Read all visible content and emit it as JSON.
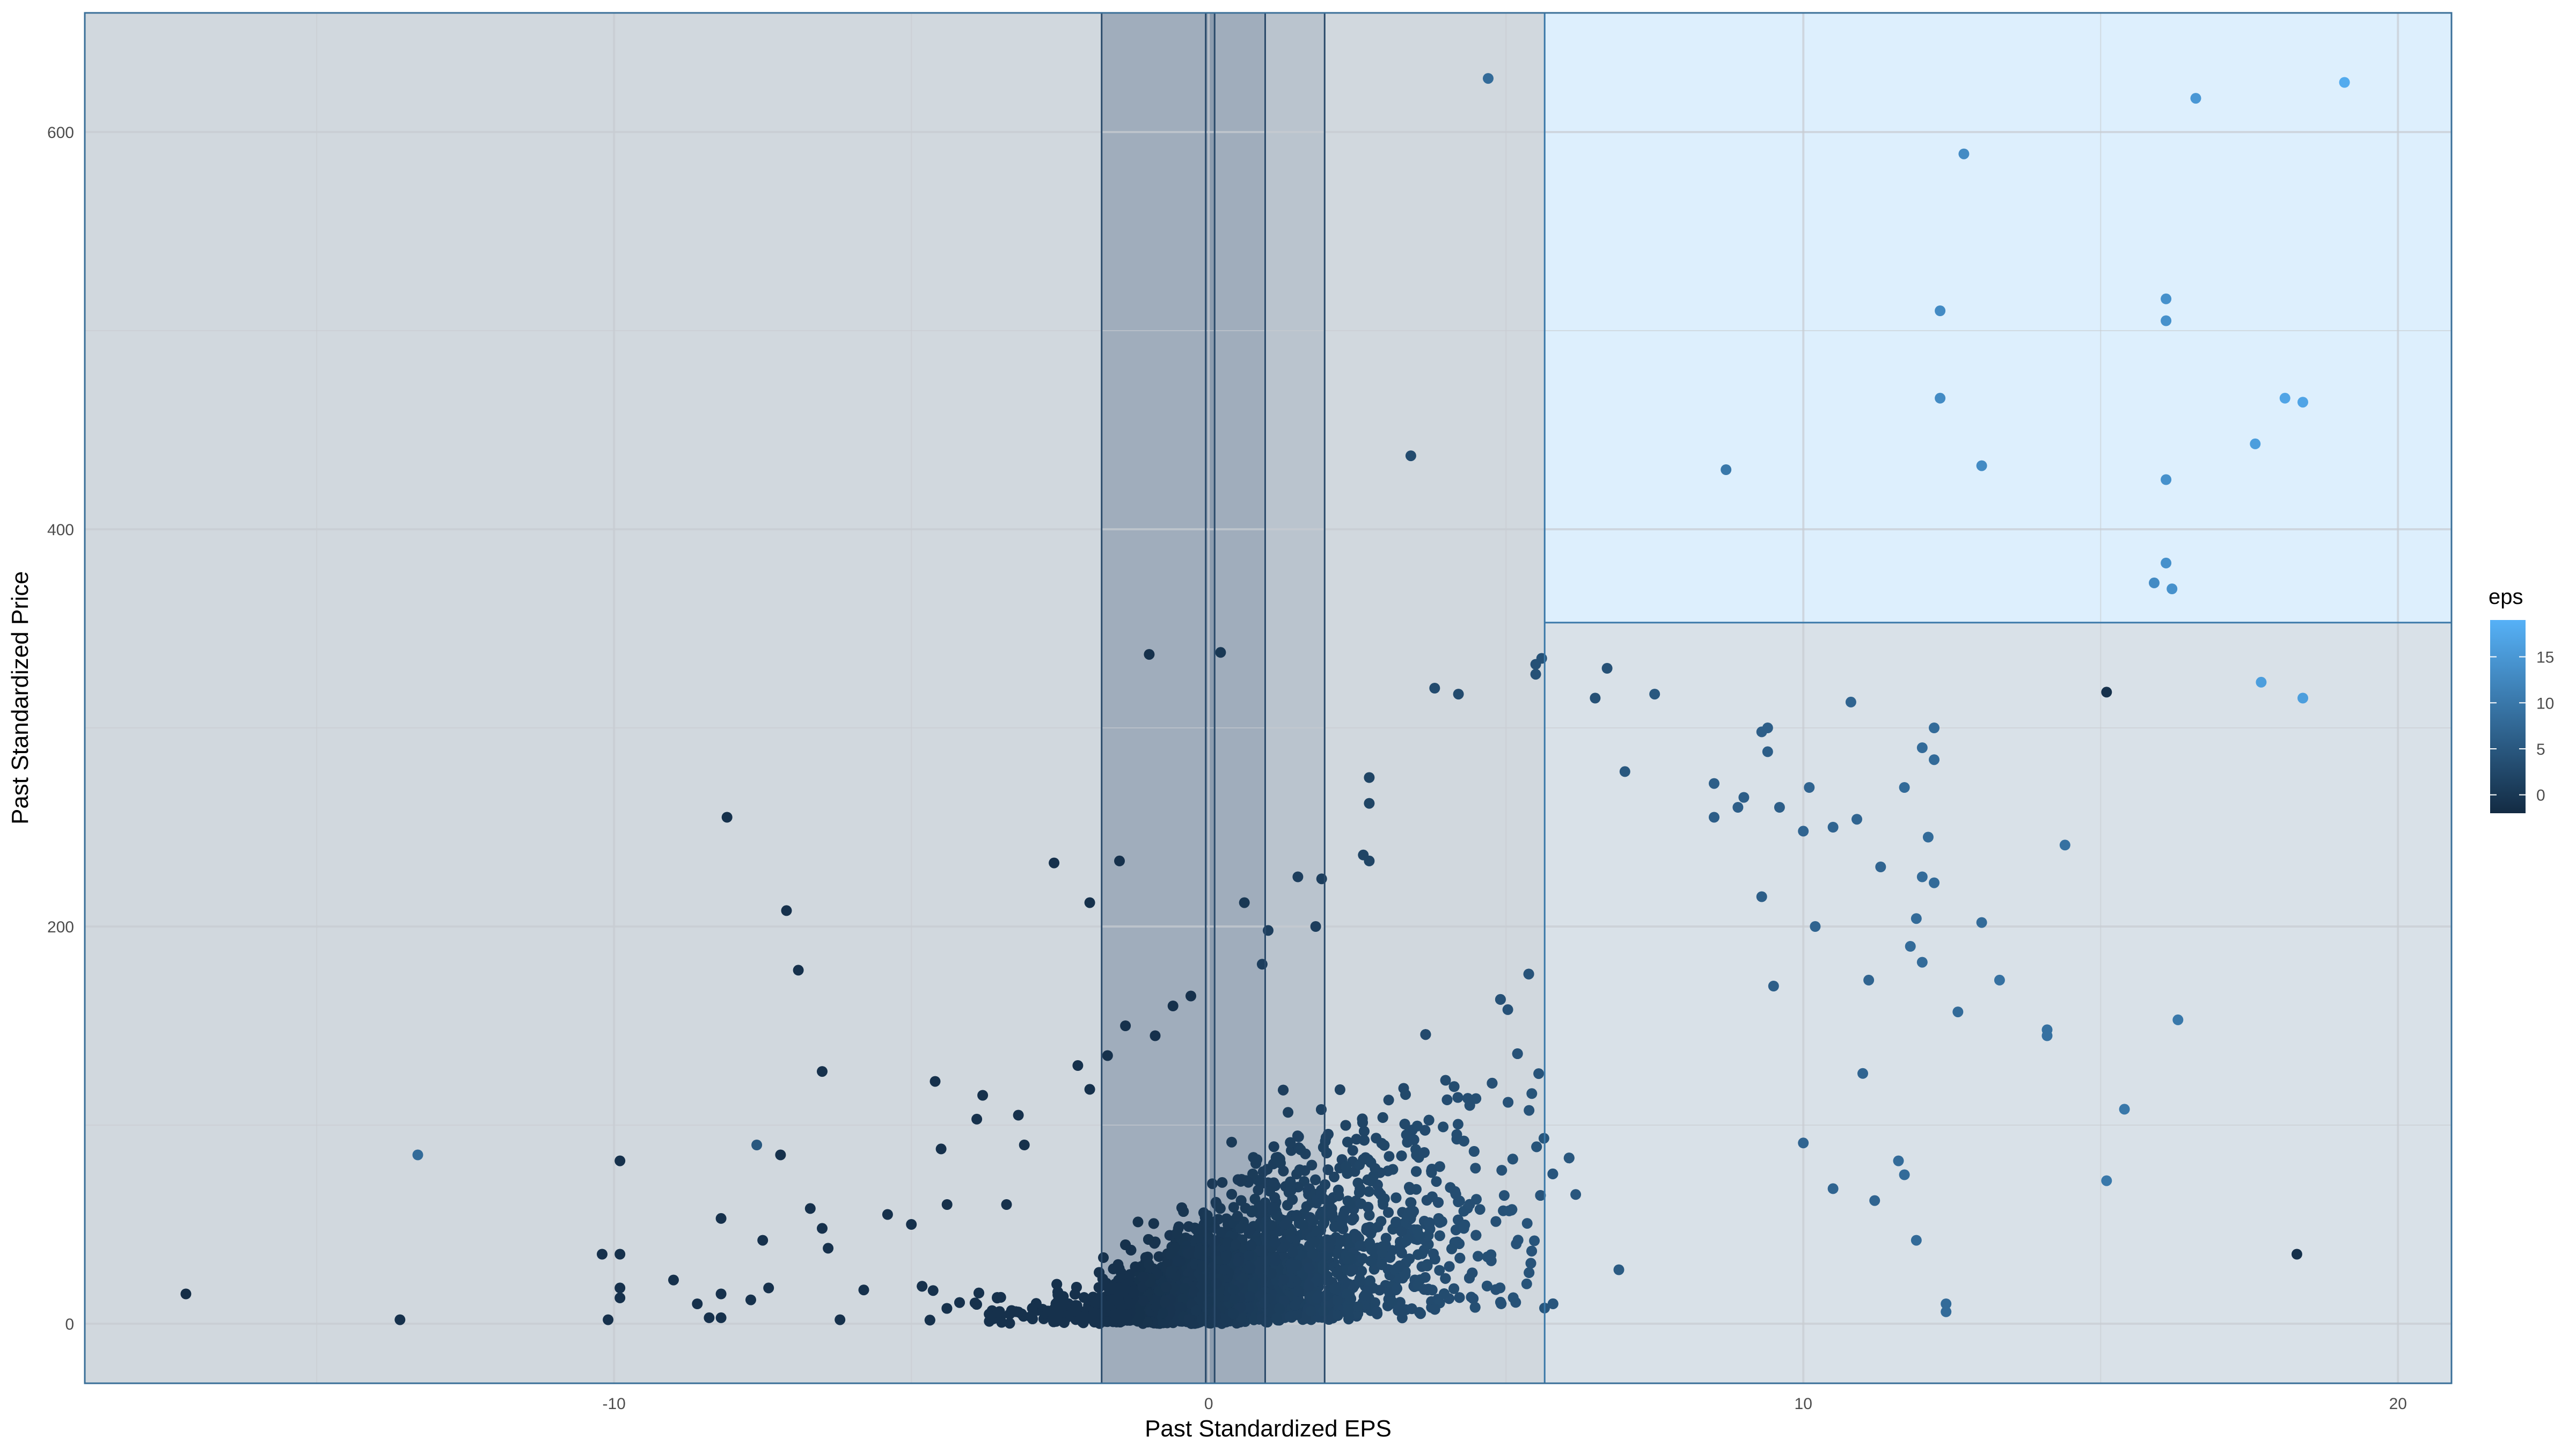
{
  "chart_data": {
    "type": "scatter",
    "title": "",
    "xlabel": "Past Standardized EPS",
    "ylabel": "Past Standardized Price",
    "xlim": [
      -18.9,
      20.9
    ],
    "ylim": [
      -30,
      660
    ],
    "x_ticks": [
      -10,
      0,
      10,
      20
    ],
    "x_tick_labels": [
      "-10",
      "0",
      "10",
      "20"
    ],
    "y_ticks": [
      0,
      200,
      400,
      600
    ],
    "y_tick_labels": [
      "0",
      "200",
      "400",
      "600"
    ],
    "x_minor_ticks": [
      -15,
      -5,
      5,
      15
    ],
    "y_minor_ticks": [
      100,
      300,
      500
    ],
    "grid": true,
    "legend": {
      "title": "eps",
      "position": "right",
      "type": "colorbar",
      "range": [
        -2,
        19
      ],
      "ticks": [
        0,
        5,
        10,
        15
      ],
      "tick_labels": [
        "0",
        "5",
        "10",
        "15"
      ],
      "color_low": "#132B43",
      "color_high": "#56B1F7"
    },
    "regions": [
      {
        "name": "region-left",
        "x_range": [
          -18.9,
          5.65
        ],
        "y_range": [
          -30,
          660
        ],
        "fill": "#1b3a5c",
        "opacity": 0.2
      },
      {
        "name": "region-right-lower",
        "x_range": [
          5.65,
          20.9
        ],
        "y_range": [
          -30,
          353
        ],
        "fill": "#2a5a80",
        "opacity": 0.18
      },
      {
        "name": "region-right-upper",
        "x_range": [
          5.65,
          20.9
        ],
        "y_range": [
          353,
          660
        ],
        "fill": "#56B1F7",
        "opacity": 0.2
      },
      {
        "name": "band-outer",
        "x_range": [
          -1.8,
          1.95
        ],
        "y_range": [
          -30,
          660
        ],
        "fill": "#1b3a5c",
        "opacity": 0.12
      },
      {
        "name": "band-inner",
        "x_range": [
          -1.8,
          0.95
        ],
        "y_range": [
          -30,
          660
        ],
        "fill": "#1b3a5c",
        "opacity": 0.16
      },
      {
        "name": "band-center",
        "x_range": [
          -0.05,
          0.1
        ],
        "y_range": [
          -30,
          660
        ],
        "fill": "#1b3a5c",
        "opacity": 0.15
      }
    ],
    "region_edges": [
      {
        "name": "region-divider-5-65",
        "axis": "x",
        "value": 5.65,
        "y_range": [
          -30,
          660
        ],
        "color": "#3a78a8"
      },
      {
        "name": "region-divider-353",
        "axis": "y",
        "value": 353,
        "x_range": [
          5.65,
          20.9
        ],
        "color": "#3a78a8"
      },
      {
        "name": "band-edge-neg-1-8",
        "axis": "x",
        "value": -1.8,
        "y_range": [
          -30,
          660
        ],
        "color": "#2a4a6a"
      },
      {
        "name": "band-edge-0-95",
        "axis": "x",
        "value": 0.95,
        "y_range": [
          -30,
          660
        ],
        "color": "#2a4a6a"
      },
      {
        "name": "band-edge-1-95",
        "axis": "x",
        "value": 1.95,
        "y_range": [
          -30,
          660
        ],
        "color": "#2a4a6a"
      },
      {
        "name": "band-edge-neg-0-05",
        "axis": "x",
        "value": -0.05,
        "y_range": [
          -30,
          660
        ],
        "color": "#2a4a6a"
      },
      {
        "name": "band-edge-0-1",
        "axis": "x",
        "value": 0.1,
        "y_range": [
          -30,
          660
        ],
        "color": "#2a4a6a"
      }
    ],
    "series": [
      {
        "name": "observations",
        "points": [
          {
            "x": -17.2,
            "y": 15,
            "eps": -1.5
          },
          {
            "x": -13.6,
            "y": 2,
            "eps": -1
          },
          {
            "x": -13.3,
            "y": 85,
            "eps": 8
          },
          {
            "x": -10.1,
            "y": 2,
            "eps": -1
          },
          {
            "x": -10.2,
            "y": 35,
            "eps": -1
          },
          {
            "x": -9.9,
            "y": 35,
            "eps": -1
          },
          {
            "x": -9.9,
            "y": 82,
            "eps": -1
          },
          {
            "x": -9.9,
            "y": 13,
            "eps": -1
          },
          {
            "x": -9.9,
            "y": 18,
            "eps": -1
          },
          {
            "x": -9.0,
            "y": 22,
            "eps": -1
          },
          {
            "x": -8.6,
            "y": 10,
            "eps": -1
          },
          {
            "x": -8.4,
            "y": 3,
            "eps": -1
          },
          {
            "x": -8.2,
            "y": 3,
            "eps": -1
          },
          {
            "x": -8.2,
            "y": 53,
            "eps": -1
          },
          {
            "x": -8.2,
            "y": 15,
            "eps": -1
          },
          {
            "x": -8.1,
            "y": 255,
            "eps": -1
          },
          {
            "x": -7.7,
            "y": 12,
            "eps": -1
          },
          {
            "x": -7.6,
            "y": 90,
            "eps": 5
          },
          {
            "x": -7.5,
            "y": 42,
            "eps": -1
          },
          {
            "x": -7.4,
            "y": 18,
            "eps": -1
          },
          {
            "x": -7.2,
            "y": 85,
            "eps": -1
          },
          {
            "x": -7.1,
            "y": 208,
            "eps": -1
          },
          {
            "x": -6.9,
            "y": 178,
            "eps": -1
          },
          {
            "x": -6.7,
            "y": 58,
            "eps": -1
          },
          {
            "x": -6.5,
            "y": 127,
            "eps": -1
          },
          {
            "x": -6.5,
            "y": 48,
            "eps": -1
          },
          {
            "x": -6.4,
            "y": 38,
            "eps": -1
          },
          {
            "x": -6.2,
            "y": 2,
            "eps": -1
          },
          {
            "x": -5.8,
            "y": 17,
            "eps": -1
          },
          {
            "x": -5.4,
            "y": 55,
            "eps": -1
          },
          {
            "x": -5.0,
            "y": 50,
            "eps": -1
          },
          {
            "x": -4.6,
            "y": 122,
            "eps": -1
          },
          {
            "x": -4.5,
            "y": 88,
            "eps": -1
          },
          {
            "x": -4.4,
            "y": 60,
            "eps": -1
          },
          {
            "x": -3.9,
            "y": 103,
            "eps": -1
          },
          {
            "x": -3.4,
            "y": 60,
            "eps": -1
          },
          {
            "x": -3.8,
            "y": 115,
            "eps": -1
          },
          {
            "x": -3.2,
            "y": 105,
            "eps": -1
          },
          {
            "x": -3.1,
            "y": 90,
            "eps": -1
          },
          {
            "x": -2.6,
            "y": 232,
            "eps": -1
          },
          {
            "x": -2.0,
            "y": 118,
            "eps": -1
          },
          {
            "x": -2.2,
            "y": 130,
            "eps": -1
          },
          {
            "x": -2.0,
            "y": 212,
            "eps": -1
          },
          {
            "x": -1.7,
            "y": 135,
            "eps": -1
          },
          {
            "x": -1.5,
            "y": 233,
            "eps": -1
          },
          {
            "x": -1.4,
            "y": 150,
            "eps": -1
          },
          {
            "x": -1.0,
            "y": 337,
            "eps": -1
          },
          {
            "x": -0.9,
            "y": 145,
            "eps": -1
          },
          {
            "x": -0.6,
            "y": 160,
            "eps": -1
          },
          {
            "x": -0.3,
            "y": 165,
            "eps": -1
          },
          {
            "x": 0.2,
            "y": 338,
            "eps": 0
          },
          {
            "x": 0.6,
            "y": 212,
            "eps": 0
          },
          {
            "x": 0.9,
            "y": 181,
            "eps": 1
          },
          {
            "x": 1.0,
            "y": 198,
            "eps": 1
          },
          {
            "x": 1.5,
            "y": 225,
            "eps": 1
          },
          {
            "x": 1.9,
            "y": 224,
            "eps": 1
          },
          {
            "x": 1.8,
            "y": 200,
            "eps": 1
          },
          {
            "x": 2.6,
            "y": 236,
            "eps": 2
          },
          {
            "x": 2.7,
            "y": 233,
            "eps": 2
          },
          {
            "x": 2.7,
            "y": 275,
            "eps": 2
          },
          {
            "x": 2.7,
            "y": 262,
            "eps": 2
          },
          {
            "x": 3.4,
            "y": 437,
            "eps": 3
          },
          {
            "x": 3.8,
            "y": 320,
            "eps": 3
          },
          {
            "x": 4.2,
            "y": 317,
            "eps": 3
          },
          {
            "x": 4.7,
            "y": 627,
            "eps": 8
          },
          {
            "x": 5.5,
            "y": 332,
            "eps": 4
          },
          {
            "x": 5.6,
            "y": 335,
            "eps": 4
          },
          {
            "x": 5.5,
            "y": 327,
            "eps": 4
          },
          {
            "x": 6.5,
            "y": 315,
            "eps": 4
          },
          {
            "x": 6.7,
            "y": 330,
            "eps": 4
          },
          {
            "x": 7.5,
            "y": 317,
            "eps": 5
          },
          {
            "x": 7.0,
            "y": 278,
            "eps": 5
          },
          {
            "x": 8.5,
            "y": 272,
            "eps": 6
          },
          {
            "x": 8.7,
            "y": 430,
            "eps": 10
          },
          {
            "x": 9.3,
            "y": 298,
            "eps": 6
          },
          {
            "x": 10.8,
            "y": 313,
            "eps": 7
          },
          {
            "x": 12.2,
            "y": 300,
            "eps": 8
          },
          {
            "x": 12.0,
            "y": 290,
            "eps": 8
          },
          {
            "x": 12.3,
            "y": 510,
            "eps": 13
          },
          {
            "x": 12.3,
            "y": 466,
            "eps": 13
          },
          {
            "x": 12.7,
            "y": 589,
            "eps": 13
          },
          {
            "x": 13.0,
            "y": 432,
            "eps": 13
          },
          {
            "x": 14.4,
            "y": 241,
            "eps": 9
          },
          {
            "x": 15.1,
            "y": 318,
            "eps": -1
          },
          {
            "x": 15.9,
            "y": 373,
            "eps": 13
          },
          {
            "x": 16.1,
            "y": 516,
            "eps": 14
          },
          {
            "x": 16.1,
            "y": 505,
            "eps": 14
          },
          {
            "x": 16.1,
            "y": 425,
            "eps": 14
          },
          {
            "x": 16.1,
            "y": 383,
            "eps": 14
          },
          {
            "x": 16.2,
            "y": 370,
            "eps": 14
          },
          {
            "x": 16.6,
            "y": 617,
            "eps": 15
          },
          {
            "x": 17.6,
            "y": 443,
            "eps": 16
          },
          {
            "x": 17.7,
            "y": 323,
            "eps": 16
          },
          {
            "x": 18.1,
            "y": 466,
            "eps": 17
          },
          {
            "x": 18.4,
            "y": 464,
            "eps": 17
          },
          {
            "x": 18.4,
            "y": 315,
            "eps": 16
          },
          {
            "x": 19.1,
            "y": 625,
            "eps": 18
          },
          {
            "x": 15.4,
            "y": 108,
            "eps": 10
          },
          {
            "x": 15.1,
            "y": 72,
            "eps": 10
          },
          {
            "x": 16.3,
            "y": 153,
            "eps": 10
          },
          {
            "x": 18.3,
            "y": 35,
            "eps": -1
          },
          {
            "x": 14.1,
            "y": 148,
            "eps": 9
          },
          {
            "x": 14.1,
            "y": 145,
            "eps": 9
          },
          {
            "x": 13.3,
            "y": 173,
            "eps": 9
          },
          {
            "x": 12.6,
            "y": 157,
            "eps": 8
          },
          {
            "x": 12.4,
            "y": 10,
            "eps": 8
          },
          {
            "x": 12.4,
            "y": 6,
            "eps": 8
          },
          {
            "x": 11.9,
            "y": 42,
            "eps": 8
          },
          {
            "x": 11.6,
            "y": 82,
            "eps": 8
          },
          {
            "x": 11.7,
            "y": 75,
            "eps": 8
          },
          {
            "x": 11.2,
            "y": 62,
            "eps": 7
          },
          {
            "x": 10.5,
            "y": 68,
            "eps": 7
          },
          {
            "x": 10.0,
            "y": 91,
            "eps": 7
          },
          {
            "x": 11.0,
            "y": 126,
            "eps": 7
          },
          {
            "x": 11.1,
            "y": 173,
            "eps": 7
          },
          {
            "x": 11.8,
            "y": 190,
            "eps": 8
          },
          {
            "x": 12.0,
            "y": 182,
            "eps": 8
          },
          {
            "x": 11.9,
            "y": 204,
            "eps": 8
          },
          {
            "x": 12.0,
            "y": 225,
            "eps": 8
          },
          {
            "x": 12.2,
            "y": 222,
            "eps": 8
          },
          {
            "x": 12.1,
            "y": 245,
            "eps": 8
          },
          {
            "x": 12.2,
            "y": 284,
            "eps": 8
          },
          {
            "x": 11.7,
            "y": 270,
            "eps": 8
          },
          {
            "x": 11.3,
            "y": 230,
            "eps": 7
          },
          {
            "x": 10.9,
            "y": 254,
            "eps": 7
          },
          {
            "x": 10.5,
            "y": 250,
            "eps": 7
          },
          {
            "x": 10.0,
            "y": 248,
            "eps": 7
          },
          {
            "x": 10.1,
            "y": 270,
            "eps": 7
          },
          {
            "x": 10.2,
            "y": 200,
            "eps": 7
          },
          {
            "x": 9.4,
            "y": 300,
            "eps": 6
          },
          {
            "x": 9.4,
            "y": 288,
            "eps": 6
          },
          {
            "x": 9.6,
            "y": 260,
            "eps": 6
          },
          {
            "x": 9.0,
            "y": 265,
            "eps": 6
          },
          {
            "x": 8.5,
            "y": 255,
            "eps": 6
          },
          {
            "x": 8.9,
            "y": 260,
            "eps": 6
          },
          {
            "x": 13.0,
            "y": 202,
            "eps": 8
          },
          {
            "x": 9.3,
            "y": 215,
            "eps": 6
          },
          {
            "x": 9.5,
            "y": 170,
            "eps": 6
          }
        ]
      }
    ]
  }
}
